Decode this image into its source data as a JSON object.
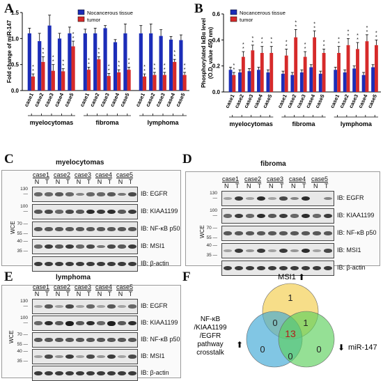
{
  "panels": {
    "A": "A",
    "B": "B",
    "C": "C",
    "D": "D",
    "E": "E",
    "F": "F"
  },
  "chart_data": [
    {
      "type": "bar",
      "panel": "A",
      "ylabel": "Fold change of miR-147",
      "ylim": [
        0,
        1.5
      ],
      "yticks": [
        "0.0",
        "0.5",
        "1.0",
        "1.5"
      ],
      "legend": [
        "Nocancerous tissue",
        "tumor"
      ],
      "legend_position": "top",
      "categories": [
        "case1",
        "case2",
        "case3",
        "case4",
        "case5",
        "case1",
        "case2",
        "case3",
        "case4",
        "case5",
        "case1",
        "case2",
        "case3",
        "case4",
        "case5"
      ],
      "groups": [
        {
          "label": "myelocytomas"
        },
        {
          "label": "fibroma"
        },
        {
          "label": "lymphoma"
        }
      ],
      "series": [
        {
          "name": "Nocancerous tissue",
          "color": "#1c2db8",
          "values": [
            1.1,
            0.95,
            1.25,
            1.0,
            1.1,
            1.1,
            1.1,
            1.2,
            0.93,
            1.1,
            1.1,
            1.1,
            1.05,
            0.98,
            0.97
          ],
          "errors": [
            0.1,
            0.15,
            0.2,
            0.1,
            0.12,
            0.08,
            0.1,
            0.05,
            0.05,
            0.18,
            0.15,
            0.18,
            0.12,
            0.06,
            0.1
          ]
        },
        {
          "name": "tumor",
          "color": "#d62a2a",
          "values": [
            0.27,
            0.55,
            0.38,
            0.37,
            0.85,
            0.4,
            0.6,
            0.28,
            0.35,
            0.4,
            0.27,
            0.3,
            0.3,
            0.55,
            0.3
          ],
          "errors": [
            0.05,
            0.1,
            0.12,
            0.05,
            0.1,
            0.05,
            0.05,
            0.05,
            0.05,
            0.05,
            0.05,
            0.05,
            0.05,
            0.05,
            0.05
          ]
        }
      ],
      "significance": "*"
    },
    {
      "type": "bar",
      "panel": "B",
      "ylabel": "Phosphorylated IκBα level\n(O.D. value 450 nm)",
      "ylim": [
        0,
        0.6
      ],
      "yticks": [
        "0.0",
        "0.2",
        "0.4",
        "0.6"
      ],
      "legend": [
        "Nocancerous tissue",
        "tumor"
      ],
      "legend_position": "top",
      "categories": [
        "case1",
        "case2",
        "case3",
        "case4",
        "case5",
        "case1",
        "case2",
        "case3",
        "case4",
        "case5",
        "case1",
        "case2",
        "case3",
        "case4",
        "case5"
      ],
      "groups": [
        {
          "label": "myelocytomas"
        },
        {
          "label": "fibroma"
        },
        {
          "label": "lymphoma"
        }
      ],
      "series": [
        {
          "name": "Nocancerous tissue",
          "color": "#1c2db8",
          "values": [
            0.17,
            0.15,
            0.16,
            0.17,
            0.15,
            0.14,
            0.13,
            0.15,
            0.19,
            0.14,
            0.17,
            0.15,
            0.18,
            0.13,
            0.19
          ],
          "errors": [
            0.02,
            0.02,
            0.02,
            0.02,
            0.02,
            0.02,
            0.02,
            0.02,
            0.02,
            0.02,
            0.02,
            0.02,
            0.02,
            0.02,
            0.02
          ]
        },
        {
          "name": "tumor",
          "color": "#d62a2a",
          "values": [
            0.13,
            0.27,
            0.32,
            0.3,
            0.3,
            0.28,
            0.42,
            0.27,
            0.42,
            0.3,
            0.3,
            0.36,
            0.33,
            0.39,
            0.36
          ],
          "errors": [
            0.02,
            0.04,
            0.04,
            0.05,
            0.05,
            0.05,
            0.06,
            0.04,
            0.05,
            0.03,
            0.05,
            0.05,
            0.05,
            0.05,
            0.04
          ]
        }
      ],
      "significance": "*"
    },
    {
      "type": "venn",
      "panel": "F",
      "sets": [
        {
          "label": "MSI1",
          "arrow": "⬆",
          "color": "#f2cc4a"
        },
        {
          "label": "NF-κB\n/KIAA1199\n/EGFR\npathway\ncrosstalk",
          "arrow": "⬆",
          "color": "#3ea8d6"
        },
        {
          "label": "miR-147",
          "arrow": "⬇",
          "color": "#5ccf5c"
        }
      ],
      "regions": {
        "MSI1_only": "1",
        "MSI1_NFkB": "0",
        "MSI1_miR147": "1",
        "center": "13",
        "NFkB_only": "0",
        "NFkB_miR147": "0",
        "miR147_only": "0"
      }
    }
  ],
  "blots": {
    "C": {
      "title": "myelocytomas",
      "cases": [
        "case1",
        "case2",
        "case3",
        "case4",
        "case5"
      ],
      "labels": [
        "IB: EGFR",
        "IB: KIAA1199",
        "IB: NF-κB p50",
        "IB: MSI1",
        "IB: β-actin"
      ],
      "mw": [
        "130",
        "100",
        "70",
        "55",
        "40",
        "35"
      ],
      "wce": "WCE"
    },
    "D": {
      "title": "fibroma",
      "cases": [
        "case1",
        "case2",
        "case3",
        "case4",
        "case5"
      ],
      "labels": [
        "IB: EGFR",
        "IB: KIAA1199",
        "IB: NF-κB p50",
        "IB: MSI1",
        "IB: β-actin"
      ],
      "mw": [
        "130",
        "100",
        "70",
        "55",
        "40",
        "35"
      ],
      "wce": "WCE"
    },
    "E": {
      "title": "lymphoma",
      "cases": [
        "case1",
        "case2",
        "case3",
        "case4",
        "case5"
      ],
      "labels": [
        "IB: EGFR",
        "IB: KIAA1199",
        "IB: NF-κB p50",
        "IB: MSI1",
        "IB: β-actin"
      ],
      "mw": [
        "130",
        "100",
        "70",
        "55",
        "40",
        "35"
      ],
      "wce": "WCE"
    },
    "nt": [
      "N",
      "T"
    ]
  }
}
